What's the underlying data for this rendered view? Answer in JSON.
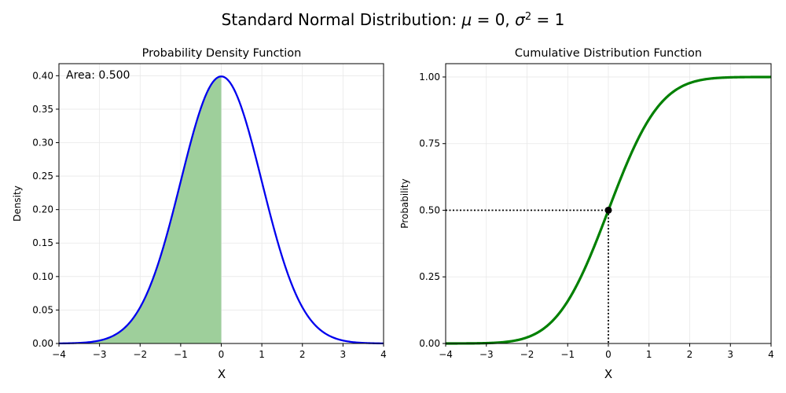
{
  "figure": {
    "suptitle_text": "Standard Normal Distribution: ",
    "suptitle_math": {
      "mu": "μ",
      "mu_eq": " = 0, ",
      "sigma": "σ",
      "sup": "2",
      "sigma_eq": " = 1"
    }
  },
  "chart_data": [
    {
      "type": "area",
      "title": "Probability Density Function",
      "xlabel": "X",
      "ylabel": "Density",
      "xlim": [
        -4,
        4
      ],
      "ylim": [
        0,
        0.418
      ],
      "xticks": [
        -4,
        -3,
        -2,
        -1,
        0,
        1,
        2,
        3,
        4
      ],
      "xtick_labels": [
        "−4",
        "−3",
        "−2",
        "−1",
        "0",
        "1",
        "2",
        "3",
        "4"
      ],
      "yticks": [
        0.0,
        0.05,
        0.1,
        0.15,
        0.2,
        0.25,
        0.3,
        0.35,
        0.4
      ],
      "ytick_labels": [
        "0.00",
        "0.05",
        "0.10",
        "0.15",
        "0.20",
        "0.25",
        "0.30",
        "0.35",
        "0.40"
      ],
      "grid": true,
      "series": [
        {
          "function": "normal_pdf",
          "mu": 0,
          "sigma": 1,
          "color": "#0000ee"
        }
      ],
      "shaded_region": {
        "from": -4,
        "to": 0,
        "color": "#9ecf9b"
      },
      "annotation": "Area: 0.500"
    },
    {
      "type": "line",
      "title": "Cumulative Distribution Function",
      "xlabel": "X",
      "ylabel": "Probability",
      "xlim": [
        -4,
        4
      ],
      "ylim": [
        0,
        1.05
      ],
      "xticks": [
        -4,
        -3,
        -2,
        -1,
        0,
        1,
        2,
        3,
        4
      ],
      "xtick_labels": [
        "−4",
        "−3",
        "−2",
        "−1",
        "0",
        "1",
        "2",
        "3",
        "4"
      ],
      "yticks": [
        0.0,
        0.25,
        0.5,
        0.75,
        1.0
      ],
      "ytick_labels": [
        "0.00",
        "0.25",
        "0.50",
        "0.75",
        "1.00"
      ],
      "grid": true,
      "series": [
        {
          "function": "normal_cdf",
          "mu": 0,
          "sigma": 1,
          "color": "#008000"
        }
      ],
      "highlight_point": {
        "x": 0,
        "y": 0.5,
        "color": "#000000"
      }
    }
  ]
}
